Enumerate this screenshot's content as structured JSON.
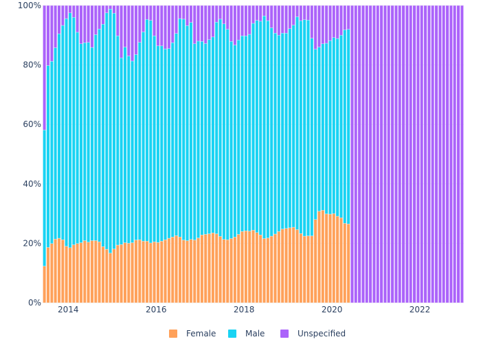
{
  "colors": {
    "female": "#FFA15A",
    "male": "#19D3F3",
    "unspecified": "#AB63FA",
    "gridline": "#e5e9f0",
    "text": "#2a3f5f",
    "bar_border": "#ffffff"
  },
  "chart_data": {
    "type": "bar",
    "stacked": true,
    "normalized": true,
    "x_start": "2013-06",
    "x_end": "2022-12",
    "x_frequency": "monthly",
    "x_tick_labels": [
      "2014",
      "2016",
      "2018",
      "2020",
      "2022"
    ],
    "x_tick_dates": [
      "2014-01",
      "2016-01",
      "2018-01",
      "2020-01",
      "2022-01"
    ],
    "y_tick_labels": [
      "0%",
      "20%",
      "40%",
      "60%",
      "80%",
      "100%"
    ],
    "y_tick_values": [
      0,
      20,
      40,
      60,
      80,
      100
    ],
    "ylim": [
      0,
      100
    ],
    "grid": true,
    "legend_position": "bottom-center",
    "series": [
      {
        "name": "Female",
        "values": [
          12.3,
          18.6,
          19.9,
          21.4,
          21.7,
          21.2,
          19.0,
          18.5,
          19.5,
          19.9,
          20.2,
          20.9,
          20.4,
          20.9,
          20.9,
          20.5,
          18.9,
          18.0,
          16.7,
          18.1,
          19.4,
          19.6,
          20.2,
          20.0,
          20.2,
          21.1,
          21.2,
          20.7,
          20.7,
          20.1,
          20.5,
          20.3,
          20.7,
          21.2,
          21.7,
          22.1,
          22.6,
          22.1,
          21.1,
          20.9,
          21.3,
          21.1,
          21.8,
          22.8,
          23.0,
          23.2,
          23.5,
          23.2,
          22.3,
          21.3,
          21.2,
          21.6,
          22.1,
          23.0,
          24.0,
          24.2,
          24.1,
          24.4,
          23.6,
          22.8,
          21.6,
          21.8,
          22.4,
          23.1,
          24.0,
          24.8,
          25.0,
          25.2,
          25.4,
          24.6,
          23.3,
          22.4,
          22.5,
          22.5,
          28.0,
          30.8,
          31.1,
          29.9,
          29.8,
          30.0,
          29.1,
          28.6,
          26.7,
          26.5,
          0,
          0,
          0,
          0,
          0,
          0,
          0,
          0,
          0,
          0,
          0,
          0,
          0,
          0,
          0,
          0,
          0,
          0,
          0,
          0,
          0,
          0,
          0,
          0,
          0,
          0,
          0,
          0,
          0,
          0,
          0,
          0,
          0,
          0,
          0,
          0,
          0,
          0,
          0,
          0
        ],
        "color": "#FFA15A"
      },
      {
        "name": "Male",
        "values": [
          45.8,
          61.2,
          61.3,
          64.4,
          68.8,
          72.1,
          76.6,
          79.0,
          76.5,
          71.1,
          66.9,
          66.6,
          67.2,
          65.0,
          69.3,
          71.6,
          74.8,
          79.5,
          82.1,
          79.3,
          70.4,
          62.8,
          65.8,
          63.0,
          61.1,
          62.4,
          66.4,
          70.4,
          74.6,
          74.9,
          69.3,
          66.1,
          65.7,
          64.2,
          63.8,
          65.4,
          68.0,
          73.5,
          74.3,
          72.3,
          73.0,
          66.0,
          66.2,
          65.1,
          64.2,
          65.3,
          65.9,
          71.2,
          73.1,
          72.5,
          70.8,
          66.3,
          64.6,
          65.4,
          65.8,
          65.6,
          66.2,
          69.6,
          71.4,
          71.9,
          74.9,
          73.1,
          70.1,
          67.6,
          66.0,
          65.9,
          65.7,
          67.0,
          68.0,
          71.6,
          71.6,
          72.8,
          72.6,
          66.5,
          57.3,
          55.2,
          56.0,
          57.4,
          58.4,
          59.2,
          59.8,
          61.4,
          65.1,
          65.5,
          0,
          0,
          0,
          0,
          0,
          0,
          0,
          0,
          0,
          0,
          0,
          0,
          0,
          0,
          0,
          0,
          0,
          0,
          0,
          0,
          0,
          0,
          0,
          0,
          0,
          0,
          0,
          0,
          0,
          0,
          0,
          0,
          0,
          0,
          0,
          0,
          0,
          0,
          0,
          0
        ],
        "color": "#19D3F3"
      },
      {
        "name": "Unspecified",
        "values": [
          41.9,
          20.2,
          18.8,
          14.2,
          9.5,
          6.7,
          4.4,
          2.5,
          4.0,
          9.0,
          12.9,
          12.5,
          12.4,
          14.1,
          9.8,
          7.9,
          6.3,
          2.5,
          1.2,
          2.6,
          10.2,
          17.6,
          14.0,
          17.0,
          18.7,
          16.5,
          12.4,
          8.9,
          4.7,
          5.0,
          10.2,
          13.6,
          13.6,
          14.6,
          14.5,
          12.5,
          9.4,
          4.4,
          4.6,
          6.8,
          5.7,
          12.9,
          12.0,
          12.1,
          12.8,
          11.5,
          10.6,
          5.6,
          4.6,
          6.2,
          8.0,
          12.1,
          13.3,
          11.6,
          10.2,
          10.2,
          9.7,
          6.0,
          5.0,
          5.3,
          3.5,
          5.1,
          7.5,
          9.3,
          10.0,
          9.3,
          9.3,
          7.8,
          6.6,
          3.8,
          5.1,
          4.8,
          4.9,
          11.0,
          14.7,
          14.0,
          12.9,
          12.7,
          11.8,
          10.8,
          11.1,
          10.0,
          8.2,
          8.0,
          100,
          100,
          100,
          100,
          100,
          100,
          100,
          100,
          100,
          100,
          100,
          100,
          100,
          100,
          100,
          100,
          100,
          100,
          100,
          100,
          100,
          100,
          100,
          100,
          100,
          100,
          100,
          100,
          100,
          100,
          100,
          100,
          100,
          100,
          100,
          100,
          100,
          100,
          100,
          100
        ],
        "color": "#AB63FA"
      }
    ]
  }
}
